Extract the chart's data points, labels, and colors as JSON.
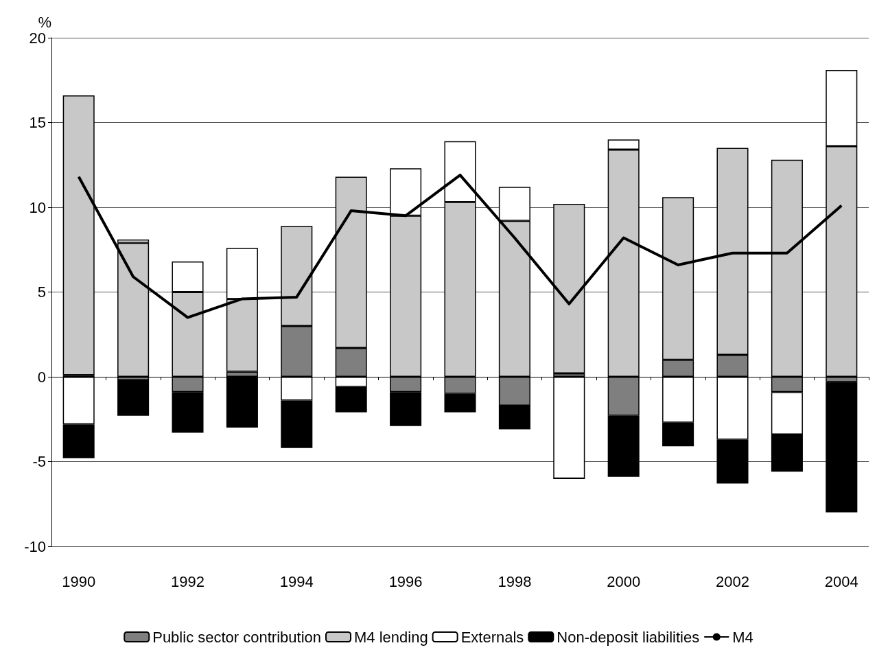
{
  "chart_data": {
    "type": "bar",
    "ylabel": "%",
    "stacked": true,
    "categories": [
      "1990",
      null,
      "1992",
      null,
      "1994",
      null,
      "1996",
      null,
      "1998",
      null,
      "2000",
      null,
      "2002",
      null,
      "2004"
    ],
    "series": [
      {
        "name": "Public sector contribution",
        "color": "#7f7f7f",
        "values": [
          0.1,
          -0.2,
          -0.9,
          0.3,
          3.0,
          1.7,
          -0.9,
          -1.0,
          -1.7,
          0.2,
          -2.3,
          1.0,
          1.3,
          -0.9,
          -0.3
        ]
      },
      {
        "name": "M4 lending",
        "color": "#c8c8c8",
        "values": [
          16.5,
          7.9,
          5.0,
          4.3,
          5.9,
          10.1,
          9.5,
          10.3,
          9.2,
          10.0,
          13.4,
          9.6,
          12.2,
          12.8,
          13.6
        ]
      },
      {
        "name": "Externals",
        "color": "#ffffff",
        "values": [
          -2.8,
          0.2,
          1.8,
          3.0,
          -1.4,
          -0.6,
          2.8,
          3.6,
          2.0,
          -6.0,
          0.6,
          -2.7,
          -3.7,
          -2.5,
          4.5
        ]
      },
      {
        "name": "Non-deposit liabilities",
        "color": "#000000",
        "values": [
          -2.0,
          -2.1,
          -2.4,
          -3.0,
          -2.8,
          -1.5,
          -2.0,
          -1.1,
          -1.4,
          0,
          -3.6,
          -1.4,
          -2.6,
          -2.2,
          -7.7
        ]
      },
      {
        "name": "M4",
        "type": "line",
        "color": "#000000",
        "values": [
          11.8,
          5.9,
          3.5,
          4.6,
          4.7,
          9.8,
          9.5,
          11.9,
          8.2,
          4.3,
          8.2,
          6.6,
          7.3,
          7.3,
          10.1
        ]
      }
    ],
    "ylim": [
      -10,
      20
    ],
    "yticks": [
      -10,
      -5,
      0,
      5,
      10,
      15,
      20
    ],
    "grid": "y",
    "legend": "bottom",
    "marker": "none"
  }
}
